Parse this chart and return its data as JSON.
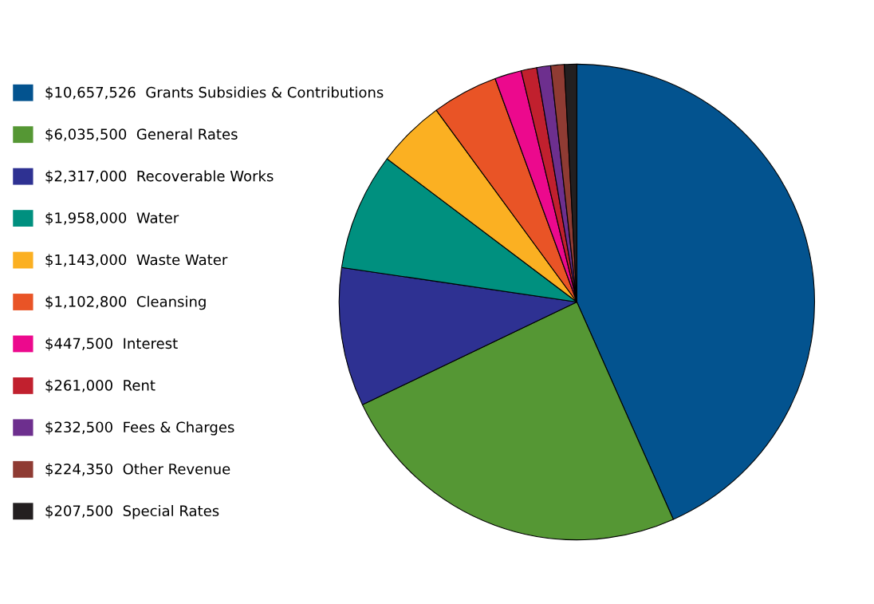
{
  "chart_data": {
    "type": "pie",
    "categories": [
      "Grants Subsidies & Contributions",
      "General Rates",
      "Recoverable Works",
      "Water",
      "Waste Water",
      "Cleansing",
      "Interest",
      "Rent",
      "Fees & Charges",
      "Other Revenue",
      "Special Rates"
    ],
    "values": [
      10657526,
      6035500,
      2317000,
      1958000,
      1143000,
      1102800,
      447500,
      261000,
      232500,
      224350,
      207500
    ],
    "value_labels": [
      "$10,657,526",
      "$6,035,500",
      "$2,317,000",
      "$1,958,000",
      "$1,143,000",
      "$1,102,800",
      "$447,500",
      "$261,000",
      "$232,500",
      "$224,350",
      "$207,500"
    ],
    "colors": [
      "#03538f",
      "#559734",
      "#2e3192",
      "#00907f",
      "#fbb022",
      "#e95426",
      "#ec098d",
      "#c1202e",
      "#6d2f8e",
      "#8f3b33",
      "#231f20"
    ],
    "legend": "left"
  }
}
